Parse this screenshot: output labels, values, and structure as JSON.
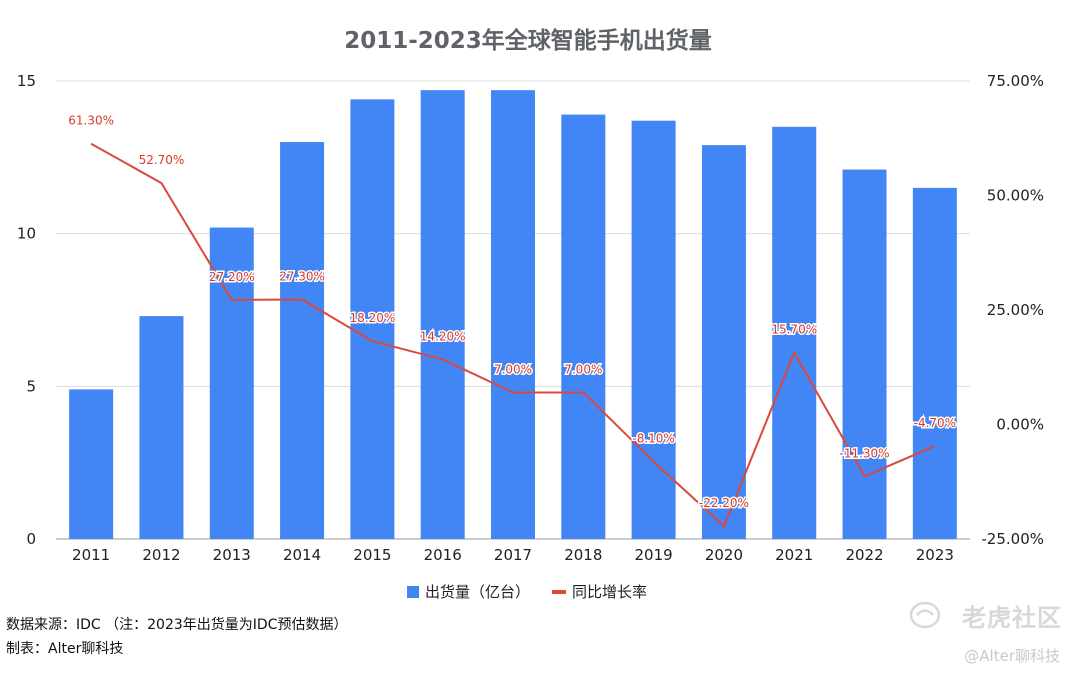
{
  "chart_data": {
    "type": "bar",
    "title": "2011-2023年全球智能手机出货量",
    "categories": [
      "2011",
      "2012",
      "2013",
      "2014",
      "2015",
      "2016",
      "2017",
      "2018",
      "2019",
      "2020",
      "2021",
      "2022",
      "2023"
    ],
    "series": [
      {
        "name": "出货量（亿台）",
        "type": "bar",
        "axis": "left",
        "color": "#4285f4",
        "values": [
          4.9,
          7.3,
          10.2,
          13.0,
          14.4,
          14.7,
          14.7,
          13.9,
          13.7,
          12.9,
          13.5,
          12.1,
          11.5
        ]
      },
      {
        "name": "同比增长率",
        "type": "line",
        "axis": "right",
        "color": "#d9493c",
        "values": [
          61.3,
          52.7,
          27.2,
          27.3,
          18.2,
          14.2,
          7.0,
          7.0,
          -8.1,
          -22.2,
          15.7,
          -11.3,
          -4.7
        ],
        "labels": [
          "61.30%",
          "52.70%",
          "27.20%",
          "27.30%",
          "18.20%",
          "14.20%",
          "7.00%",
          "7.00%",
          "-8.10%",
          "-22.20%",
          "15.70%",
          "-11.30%",
          "-4.70%"
        ]
      }
    ],
    "y_left": {
      "ylim": [
        0,
        15
      ],
      "ticks": [
        0,
        5,
        10,
        15
      ],
      "tick_labels": [
        "0",
        "5",
        "10",
        "15"
      ]
    },
    "y_right": {
      "ylim": [
        -25,
        75
      ],
      "ticks": [
        -25,
        0,
        25,
        50,
        75
      ],
      "tick_labels": [
        "-25.00%",
        "0.00%",
        "25.00%",
        "50.00%",
        "75.00%"
      ]
    },
    "grid": true,
    "legend": "bottom"
  },
  "footer": {
    "source": "数据来源：IDC （注：2023年出货量为IDC预估数据）",
    "maker": "制表：Alter聊科技"
  },
  "watermark": {
    "brand": "老虎社区",
    "author": "@Alter聊科技"
  }
}
